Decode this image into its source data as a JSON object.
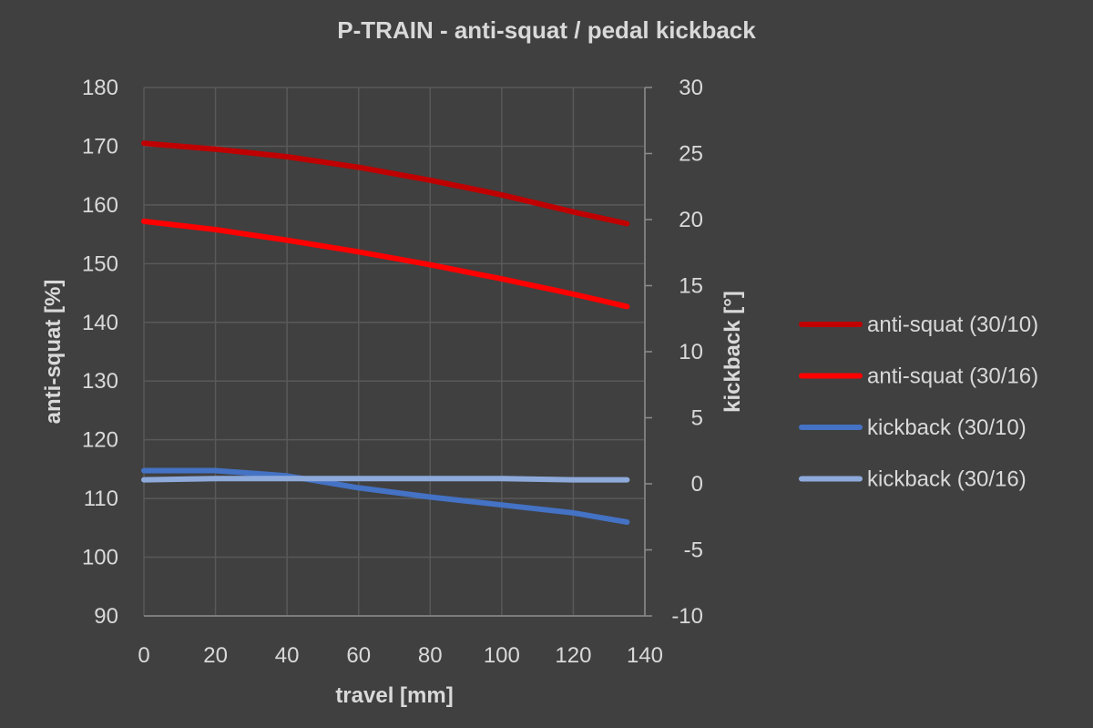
{
  "chart_data": {
    "type": "line",
    "title": "P-TRAIN - anti-squat / pedal kickback",
    "xlabel": "travel [mm]",
    "ylabel": "anti-squat [%]",
    "y2label": "kickback [°]",
    "xlim": [
      0,
      140
    ],
    "ylim": [
      90,
      180
    ],
    "y2lim": [
      -10,
      30
    ],
    "x_ticks": [
      "0",
      "20",
      "40",
      "60",
      "80",
      "100",
      "120",
      "140"
    ],
    "y_ticks": [
      "180",
      "170",
      "160",
      "150",
      "140",
      "130",
      "120",
      "110",
      "100",
      "90"
    ],
    "y2_ticks": [
      "30",
      "25",
      "20",
      "15",
      "10",
      "5",
      "0",
      "-5",
      "-10"
    ],
    "legend_position": "right",
    "x": [
      0,
      20,
      40,
      60,
      80,
      100,
      120,
      135
    ],
    "series": [
      {
        "name": "anti-squat (30/10)",
        "axis": "left",
        "color": "#c00000",
        "values": [
          170.5,
          169.5,
          168.2,
          166.4,
          164.2,
          161.7,
          158.8,
          156.8
        ]
      },
      {
        "name": "anti-squat (30/16)",
        "axis": "left",
        "color": "#ff0000",
        "values": [
          157.2,
          155.8,
          154.0,
          152.0,
          149.8,
          147.4,
          144.8,
          142.7
        ]
      },
      {
        "name": "kickback (30/10)",
        "axis": "right",
        "color": "#4472c4",
        "values": [
          1.0,
          1.0,
          0.6,
          -0.3,
          -1.0,
          -1.6,
          -2.2,
          -2.9
        ]
      },
      {
        "name": "kickback (30/16)",
        "axis": "right",
        "color": "#8eaadb",
        "values": [
          0.3,
          0.4,
          0.4,
          0.4,
          0.4,
          0.4,
          0.3,
          0.3
        ]
      }
    ]
  }
}
